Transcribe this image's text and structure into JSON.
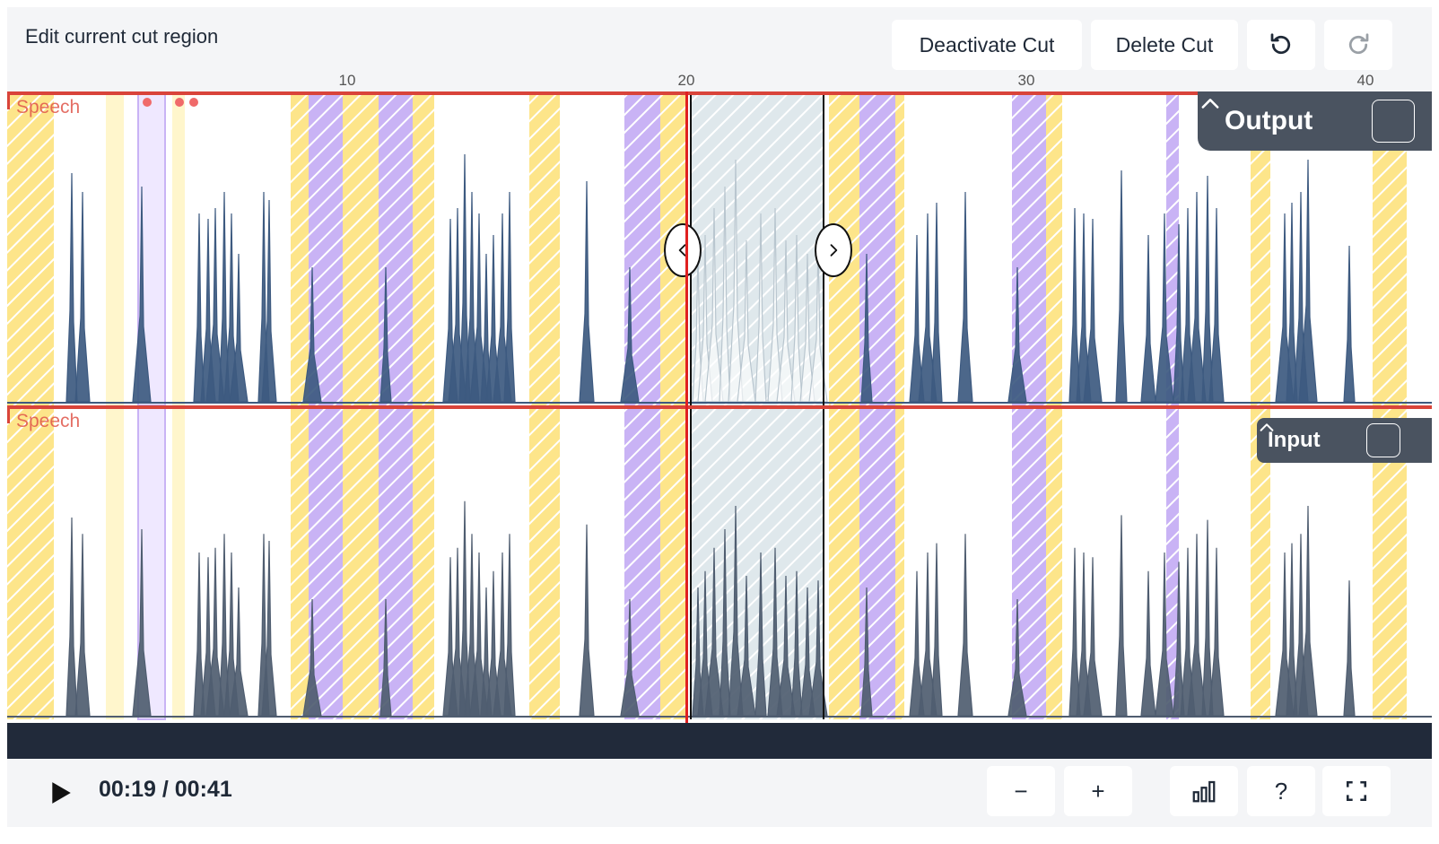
{
  "header": {
    "title": "Edit current cut region",
    "deactivate_label": "Deactivate Cut",
    "delete_label": "Delete Cut",
    "undo_icon": "undo-icon",
    "redo_icon": "redo-icon"
  },
  "ruler": {
    "ticks": [
      "10",
      "20",
      "30",
      "40"
    ]
  },
  "tracks": {
    "output": {
      "name": "Output",
      "speech_label": "Speech",
      "toggle_icon": "chevron-up-icon"
    },
    "input": {
      "name": "Input",
      "speech_label": "Speech",
      "toggle_icon": "chevron-up-icon"
    }
  },
  "cut": {
    "prev_icon": "chevron-left-icon",
    "next_icon": "chevron-right-icon"
  },
  "footer": {
    "time": "00:19 / 00:41",
    "play_icon": "play-icon",
    "zoom_out_label": "−",
    "zoom_in_label": "+",
    "chart_icon": "bar-chart-icon",
    "help_label": "?",
    "fullscreen_icon": "fullscreen-icon"
  },
  "colors": {
    "playhead": "#e02020",
    "waveform": "#3d5a80",
    "waveform_input": "#4f5d70",
    "yellow_hatch": "#fde58a",
    "purple_hatch": "#c9b3f5",
    "cut_region": "#dfe8ec",
    "badge_bg": "#4a5360",
    "speech_label": "#e0554a"
  }
}
